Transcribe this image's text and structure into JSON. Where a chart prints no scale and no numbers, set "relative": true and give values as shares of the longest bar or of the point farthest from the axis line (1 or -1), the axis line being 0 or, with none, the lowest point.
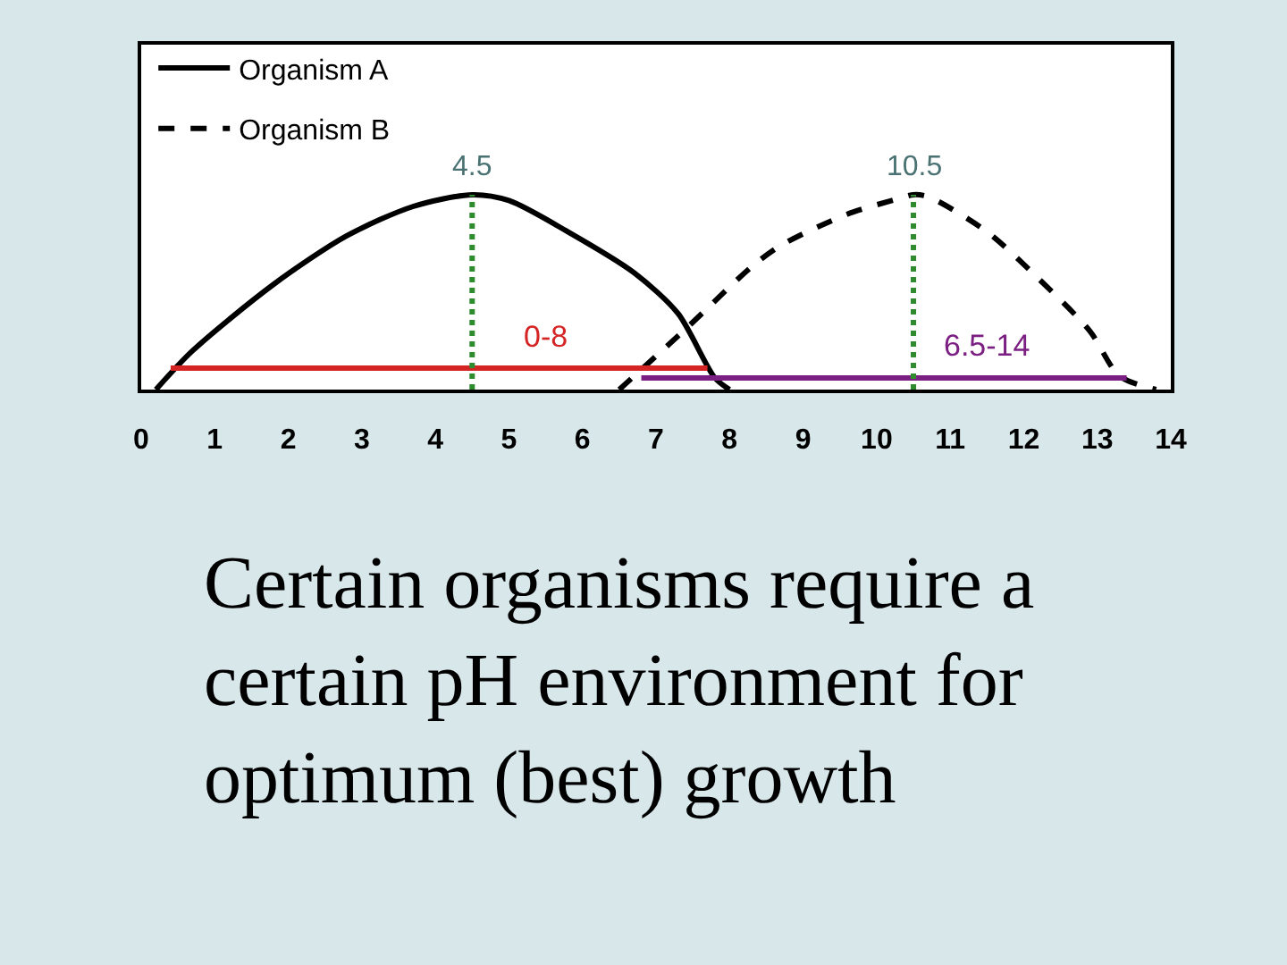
{
  "chart_data": {
    "type": "line",
    "relative": true,
    "legend": "top left",
    "xlim": [
      0,
      14
    ],
    "xticks": [
      0,
      1,
      2,
      3,
      4,
      5,
      6,
      7,
      8,
      9,
      10,
      11,
      12,
      13,
      14
    ],
    "series": [
      {
        "name": "Organism A",
        "color": "#000000",
        "line_style": "solid",
        "x": [
          0.2,
          0.7,
          1.8,
          2.8,
          3.7,
          4.5,
          5.0,
          5.8,
          6.7,
          7.3,
          7.8,
          8.0
        ],
        "values": [
          0,
          0.2,
          0.54,
          0.79,
          0.94,
          1,
          0.97,
          0.81,
          0.6,
          0.39,
          0.06,
          0
        ]
      },
      {
        "name": "Organism B",
        "color": "#000000",
        "line_style": "dashed",
        "x": [
          6.5,
          7.4,
          8.3,
          8.7,
          9.6,
          10.3,
          10.5,
          10.7,
          11.5,
          12.2,
          12.9,
          13.3,
          13.8
        ],
        "values": [
          0,
          0.31,
          0.63,
          0.74,
          0.9,
          0.98,
          1,
          0.99,
          0.81,
          0.57,
          0.3,
          0.07,
          0
        ]
      },
      {
        "color": "#d42424",
        "line_style": "solid",
        "x": [
          0.4,
          7.7
        ],
        "values": [
          0.11,
          0.11
        ]
      },
      {
        "color": "#7b1f82",
        "line_style": "solid",
        "x": [
          6.8,
          13.4
        ],
        "values": [
          0.06,
          0.06
        ]
      }
    ],
    "ref_lines": [
      {
        "axis": "x",
        "value": 4.5,
        "label": "4.5",
        "color": "#2e8b2e",
        "line_style": "dotted"
      },
      {
        "axis": "x",
        "value": 10.5,
        "label": "10.5",
        "color": "#2e8b2e",
        "line_style": "dotted"
      }
    ],
    "annotations": [
      {
        "text": "0-8",
        "x": 5.5,
        "y": 0.11
      },
      {
        "text": "6.5-14",
        "x": 11.5,
        "y": 0.06
      },
      "Certain organisms require a certain pH environment for optimum (best) growth"
    ]
  }
}
